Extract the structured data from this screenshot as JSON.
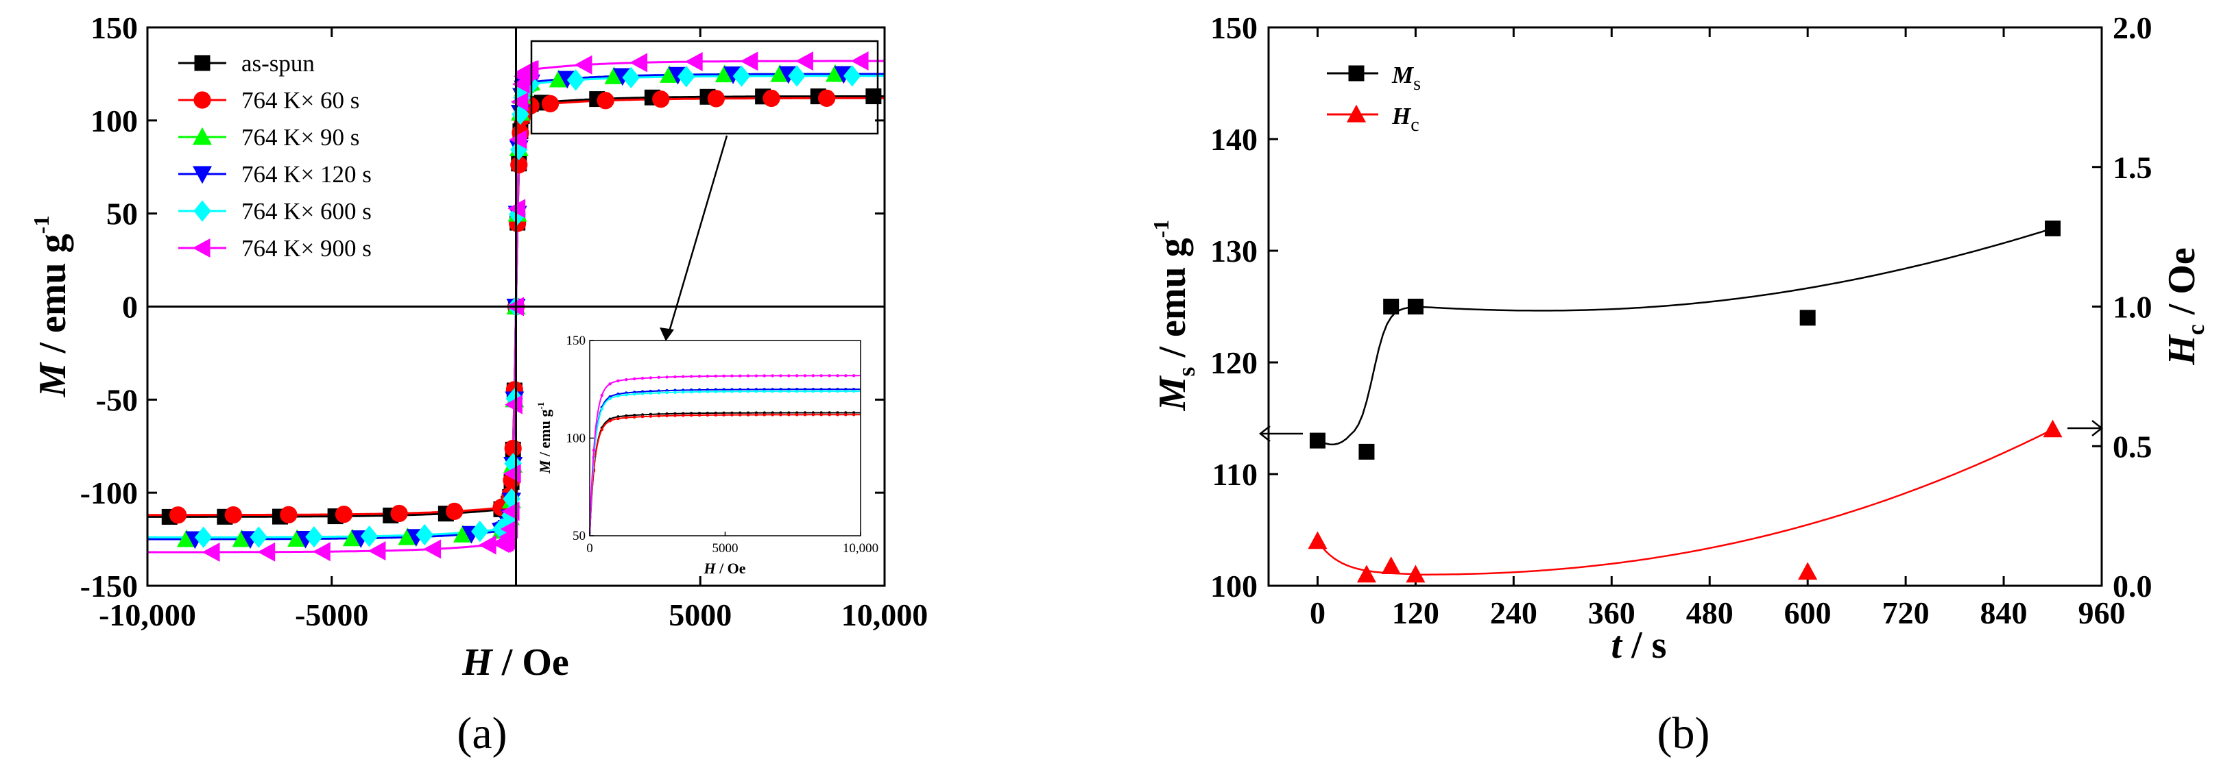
{
  "chart_data": [
    {
      "panel": "(a)",
      "type": "line",
      "xlabel": {
        "var": "H",
        "unit": " / Oe"
      },
      "ylabel": {
        "var": "M",
        "unit": " / emu g",
        "sup": "-1"
      },
      "xlim": [
        -10000,
        10000
      ],
      "ylim": [
        -150,
        150
      ],
      "xticks": [
        -10000,
        -5000,
        5000,
        10000
      ],
      "xtick_labels": [
        "-10,000",
        "-5000",
        "5000",
        "10,000"
      ],
      "yticks": [
        150,
        100,
        50,
        0,
        -50,
        -100,
        -150
      ],
      "ytick_labels": [
        "150",
        "100",
        "50",
        "0",
        "-50",
        "-100",
        "-150"
      ],
      "legend_position": "top-left",
      "series": [
        {
          "name": "as-spun",
          "color": "#000000",
          "marker": "square",
          "ms": 113
        },
        {
          "name": "764 K× 60 s",
          "color": "#ff0000",
          "marker": "circle",
          "ms": 112
        },
        {
          "name": "764 K× 90 s",
          "color": "#00ff00",
          "marker": "triangle-up",
          "ms": 125
        },
        {
          "name": "764 K× 120 s",
          "color": "#0000ff",
          "marker": "triangle-down",
          "ms": 125
        },
        {
          "name": "764 K× 600 s",
          "color": "#00ffff",
          "marker": "diamond",
          "ms": 124
        },
        {
          "name": "764 K× 900 s",
          "color": "#ff00ff",
          "marker": "triangle-left",
          "ms": 132
        }
      ],
      "inset": {
        "xlabel": {
          "var": "H",
          "unit": " / Oe"
        },
        "ylabel": {
          "var": "M",
          "unit": " / emu g",
          "sup": "-1"
        },
        "xlim": [
          0,
          10000
        ],
        "ylim": [
          50,
          150
        ],
        "xticks": [
          0,
          5000,
          10000
        ],
        "xtick_labels": [
          "0",
          "5000",
          "10,000"
        ],
        "yticks": [
          50,
          100,
          150
        ],
        "ytick_labels": [
          "50",
          "100",
          "150"
        ]
      }
    },
    {
      "panel": "(b)",
      "type": "scatter",
      "xlabel": {
        "var": "t",
        "unit": " / s"
      },
      "ylabel_left": {
        "var": "M",
        "sub": "s",
        "unit": " / emu g",
        "sup": "-1"
      },
      "ylabel_right": {
        "var": "H",
        "sub": "c",
        "unit": " / Oe"
      },
      "xlim": [
        -60,
        960
      ],
      "ylim_left": [
        100,
        150
      ],
      "ylim_right": [
        0.0,
        2.0
      ],
      "xticks": [
        0,
        120,
        240,
        360,
        480,
        600,
        720,
        840,
        960
      ],
      "xtick_labels": [
        "0",
        "120",
        "240",
        "360",
        "480",
        "600",
        "720",
        "840",
        "960"
      ],
      "yticks_left": [
        100,
        110,
        120,
        130,
        140,
        150
      ],
      "ytick_labels_left": [
        "100",
        "110",
        "120",
        "130",
        "140",
        "150"
      ],
      "yticks_right": [
        0.0,
        0.5,
        1.0,
        1.5,
        2.0
      ],
      "ytick_labels_right": [
        "0.0",
        "0.5",
        "1.0",
        "1.5",
        "2.0"
      ],
      "legend_position": "top-left",
      "series": [
        {
          "name": "Ms",
          "label_var": "M",
          "label_sub": "s",
          "color": "#000000",
          "marker": "square",
          "axis": "left",
          "x": [
            0,
            60,
            90,
            120,
            600,
            900
          ],
          "y": [
            113,
            112,
            125,
            125,
            124,
            132
          ]
        },
        {
          "name": "Hc",
          "label_var": "H",
          "label_sub": "c",
          "color": "#ff0000",
          "marker": "triangle-up",
          "axis": "right",
          "x": [
            0,
            60,
            90,
            120,
            600,
            900
          ],
          "y": [
            0.16,
            0.04,
            0.07,
            0.04,
            0.05,
            0.56
          ]
        }
      ]
    }
  ]
}
